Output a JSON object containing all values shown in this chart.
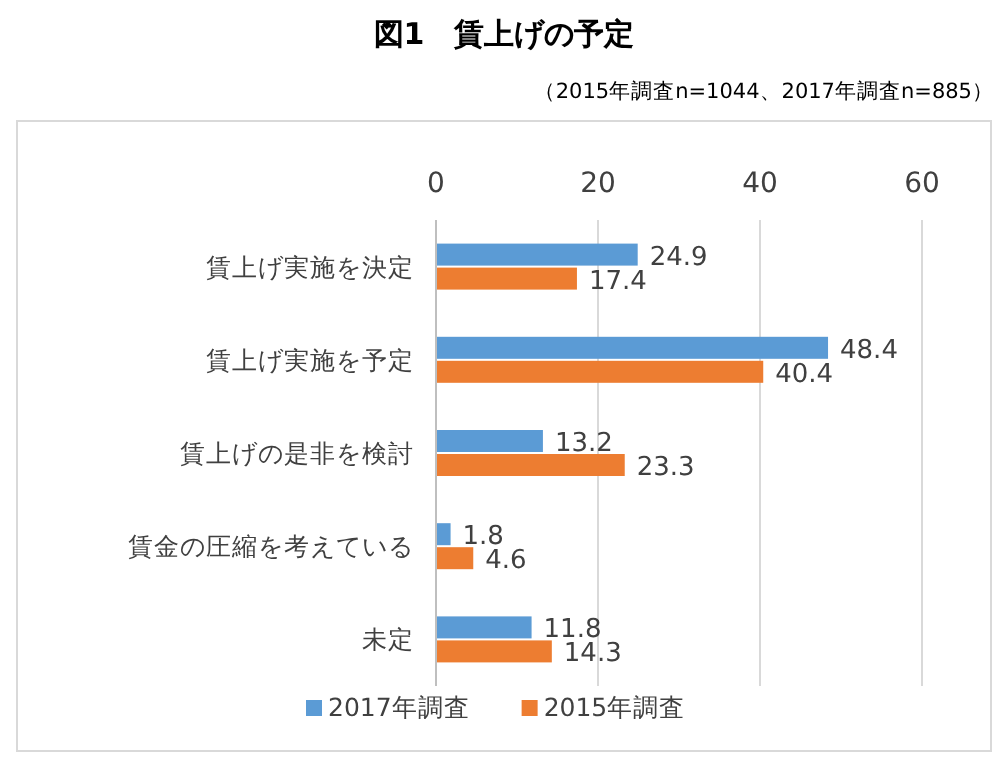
{
  "chart_data": {
    "type": "bar",
    "orientation": "horizontal",
    "title": "図1　賃上げの予定",
    "subtitle": "（2015年調査n=1044、2017年調査n=885）",
    "categories": [
      "賃上げ実施を決定",
      "賃上げ実施を予定",
      "賃上げの是非を検討",
      "賃金の圧縮を考えている",
      "未定"
    ],
    "series": [
      {
        "name": "2017年調査",
        "color": "#5b9bd5",
        "values": [
          24.9,
          48.4,
          13.2,
          1.8,
          11.8
        ]
      },
      {
        "name": "2015年調査",
        "color": "#ed7d31",
        "values": [
          17.4,
          40.4,
          23.3,
          4.6,
          14.3
        ]
      }
    ],
    "xlim": [
      0,
      60
    ],
    "xticks": [
      0,
      20,
      40,
      60
    ],
    "grid": "x",
    "legend": "bottom",
    "data_labels": true
  }
}
